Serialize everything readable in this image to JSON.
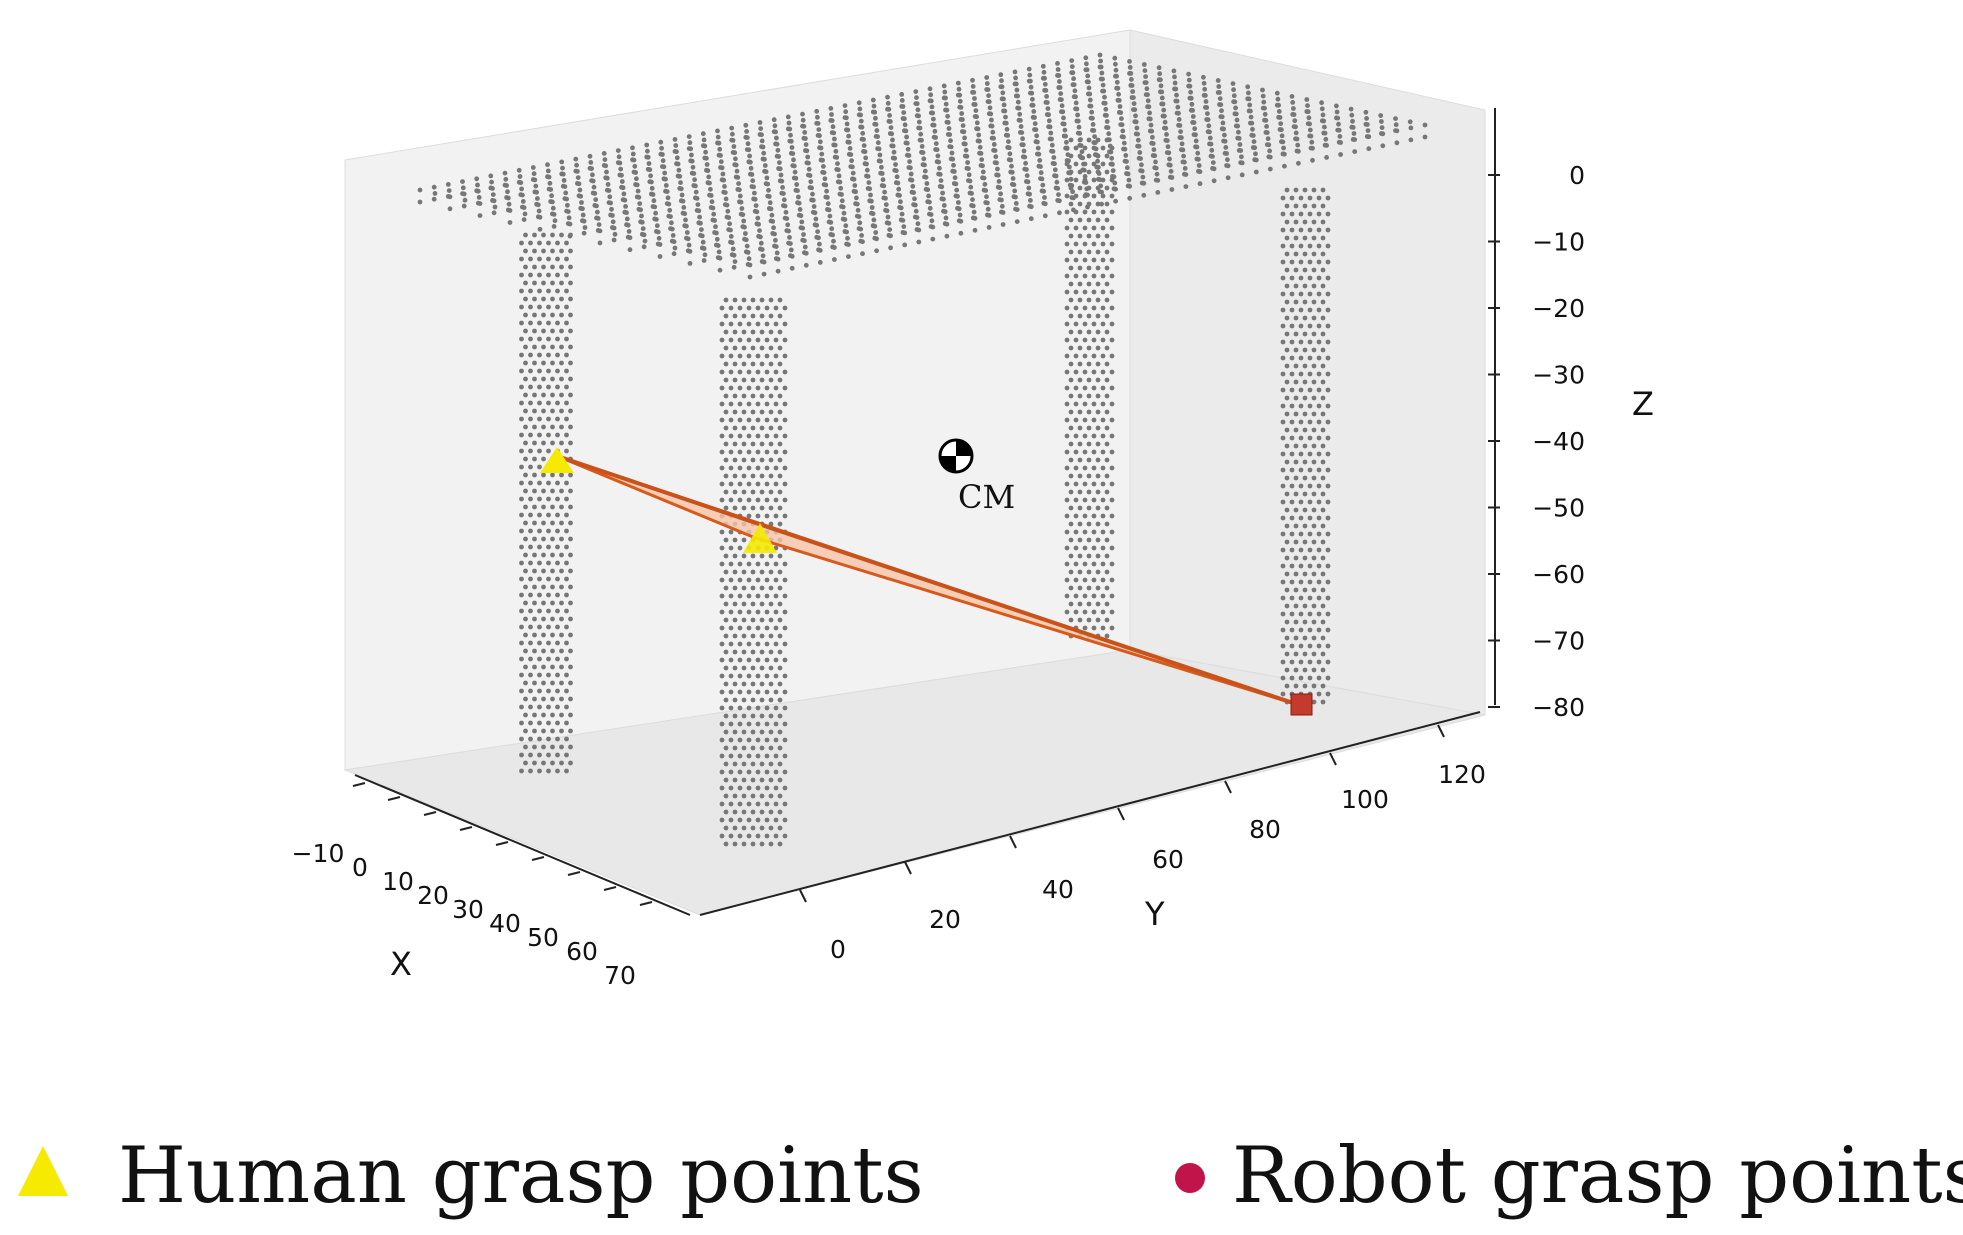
{
  "chart_data": {
    "type": "scatter",
    "title": "",
    "axes": {
      "x": {
        "label": "X",
        "ticks": [
          "−10",
          "0",
          "10",
          "20",
          "30",
          "40",
          "50",
          "60",
          "70"
        ],
        "range": [
          -10,
          70
        ]
      },
      "y": {
        "label": "Y",
        "ticks": [
          "0",
          "20",
          "40",
          "60",
          "80",
          "100",
          "120"
        ],
        "range": [
          0,
          125
        ]
      },
      "z": {
        "label": "Z",
        "ticks": [
          "0",
          "−10",
          "−20",
          "−30",
          "−40",
          "−50",
          "−60",
          "−70",
          "−80"
        ],
        "range": [
          -80,
          5
        ]
      }
    },
    "grid": false,
    "series": [
      {
        "name": "Human grasp points",
        "marker": "triangle",
        "color": "#f5ea00",
        "points": [
          {
            "x": 0,
            "y": 0,
            "z": -42
          },
          {
            "x": 0,
            "y": 45,
            "z": -55
          }
        ]
      },
      {
        "name": "Robot grasp points",
        "marker": "circle",
        "color": "#c0144b",
        "points": [
          {
            "x": 60,
            "y": 110,
            "z": -80
          }
        ]
      }
    ],
    "annotations": [
      {
        "label": "CM",
        "marker": "center-of-mass-symbol"
      }
    ],
    "point_cloud": {
      "color": "#777777",
      "description": "table object"
    },
    "support_polygon_color": "#d65a1c",
    "legend": {
      "placement": "bottom"
    }
  }
}
